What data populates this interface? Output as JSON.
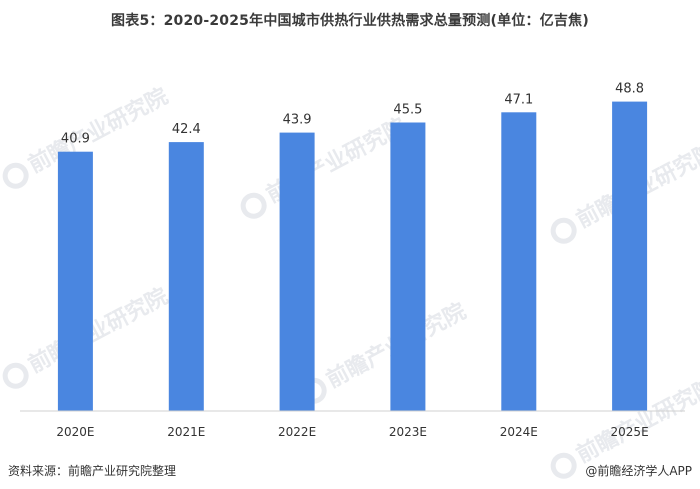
{
  "chart_data": {
    "type": "bar",
    "title": "图表5：2020-2025年中国城市供热行业供热需求总量预测(单位：亿吉焦)",
    "categories": [
      "2020E",
      "2021E",
      "2022E",
      "2023E",
      "2024E",
      "2025E"
    ],
    "values": [
      40.9,
      42.4,
      43.9,
      45.5,
      47.1,
      48.8
    ],
    "value_labels": [
      "40.9",
      "42.4",
      "43.9",
      "45.5",
      "47.1",
      "48.8"
    ],
    "xlabel": "",
    "ylabel": "",
    "ylim": [
      0,
      56.3
    ],
    "grid": false,
    "legend": "none",
    "bar_color": "#4a86e0"
  },
  "watermark": {
    "text": "前瞻产业研究院"
  },
  "footer": {
    "source": "资料来源：前瞻产业研究院整理",
    "brand": "@前瞻经济学人APP"
  }
}
